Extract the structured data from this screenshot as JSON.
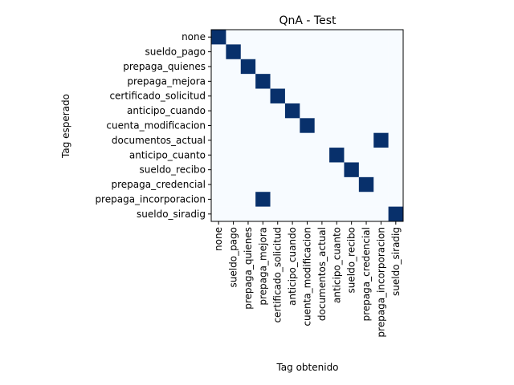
{
  "chart_data": {
    "type": "heatmap",
    "title": "QnA - Test",
    "xlabel": "Tag obtenido",
    "ylabel": "Tag esperado",
    "x_categories": [
      "none",
      "sueldo_pago",
      "prepaga_quienes",
      "prepaga_mejora",
      "certificado_solicitud",
      "anticipo_cuando",
      "cuenta_modificacion",
      "documentos_actual",
      "anticipo_cuanto",
      "sueldo_recibo",
      "prepaga_credencial",
      "prepaga_incorporacion",
      "sueldo_siradig"
    ],
    "y_categories": [
      "none",
      "sueldo_pago",
      "prepaga_quienes",
      "prepaga_mejora",
      "certificado_solicitud",
      "anticipo_cuando",
      "cuenta_modificacion",
      "documentos_actual",
      "anticipo_cuanto",
      "sueldo_recibo",
      "prepaga_credencial",
      "prepaga_incorporacion",
      "sueldo_siradig"
    ],
    "matrix": [
      [
        1,
        0,
        0,
        0,
        0,
        0,
        0,
        0,
        0,
        0,
        0,
        0,
        0
      ],
      [
        0,
        1,
        0,
        0,
        0,
        0,
        0,
        0,
        0,
        0,
        0,
        0,
        0
      ],
      [
        0,
        0,
        1,
        0,
        0,
        0,
        0,
        0,
        0,
        0,
        0,
        0,
        0
      ],
      [
        0,
        0,
        0,
        1,
        0,
        0,
        0,
        0,
        0,
        0,
        0,
        0,
        0
      ],
      [
        0,
        0,
        0,
        0,
        1,
        0,
        0,
        0,
        0,
        0,
        0,
        0,
        0
      ],
      [
        0,
        0,
        0,
        0,
        0,
        1,
        0,
        0,
        0,
        0,
        0,
        0,
        0
      ],
      [
        0,
        0,
        0,
        0,
        0,
        0,
        1,
        0,
        0,
        0,
        0,
        0,
        0
      ],
      [
        0,
        0,
        0,
        0,
        0,
        0,
        0,
        0,
        0,
        0,
        0,
        1,
        0
      ],
      [
        0,
        0,
        0,
        0,
        0,
        0,
        0,
        0,
        1,
        0,
        0,
        0,
        0
      ],
      [
        0,
        0,
        0,
        0,
        0,
        0,
        0,
        0,
        0,
        1,
        0,
        0,
        0
      ],
      [
        0,
        0,
        0,
        0,
        0,
        0,
        0,
        0,
        0,
        0,
        1,
        0,
        0
      ],
      [
        0,
        0,
        0,
        1,
        0,
        0,
        0,
        0,
        0,
        0,
        0,
        0,
        0
      ],
      [
        0,
        0,
        0,
        0,
        0,
        0,
        0,
        0,
        0,
        0,
        0,
        0,
        1
      ]
    ],
    "colormap": {
      "low": "#f7fbff",
      "high": "#08306b"
    },
    "grid": false,
    "legend": "none"
  }
}
